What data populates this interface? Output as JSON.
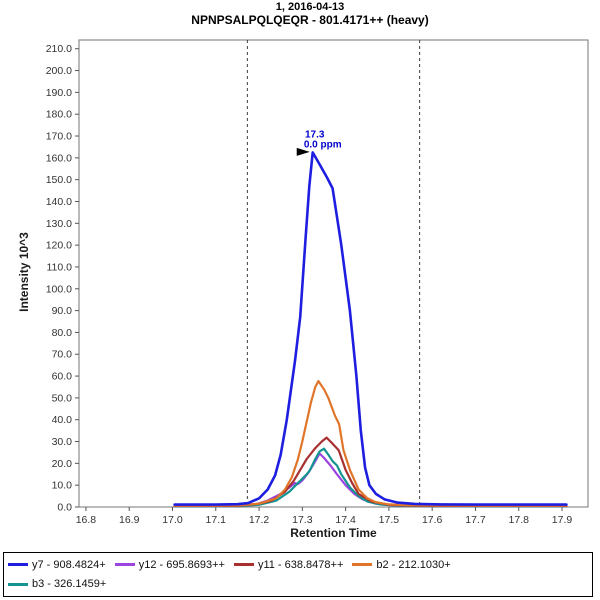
{
  "chart_data": {
    "type": "line",
    "title": "1, 2016-04-13",
    "subtitle": "NPNPSALPQLQEQR - 801.4171++ (heavy)",
    "xlabel": "Retention Time",
    "ylabel": "Intensity 10^3",
    "xlim": [
      16.784,
      17.96
    ],
    "ylim": [
      0,
      214
    ],
    "x_ticks": [
      16.8,
      16.9,
      17.0,
      17.1,
      17.2,
      17.3,
      17.4,
      17.5,
      17.6,
      17.7,
      17.8,
      17.9
    ],
    "y_ticks": [
      0,
      10,
      20,
      30,
      40,
      50,
      60,
      70,
      80,
      90,
      100,
      110,
      120,
      130,
      140,
      150,
      160,
      170,
      180,
      190,
      200,
      210
    ],
    "grid": false,
    "legend_position": "bottom",
    "peak_boundaries": [
      17.173,
      17.571
    ],
    "boundary_color": "#3c3c3c",
    "annotation": {
      "x": 17.324,
      "y": 162.5,
      "line1": "17.3",
      "line2": "0.0 ppm",
      "color": "#0000cc",
      "arrow_color": "#000000"
    },
    "series": [
      {
        "name": "y7",
        "label": "y7 - 908.4824+",
        "color": "#1e1ee0",
        "width": 2.6,
        "points": [
          [
            17.005,
            1.1
          ],
          [
            17.05,
            1.1
          ],
          [
            17.1,
            1.1
          ],
          [
            17.15,
            1.3
          ],
          [
            17.175,
            1.8
          ],
          [
            17.2,
            4
          ],
          [
            17.22,
            8
          ],
          [
            17.237,
            14.5
          ],
          [
            17.25,
            24
          ],
          [
            17.264,
            40
          ],
          [
            17.283,
            67
          ],
          [
            17.295,
            87
          ],
          [
            17.307,
            122
          ],
          [
            17.316,
            147
          ],
          [
            17.324,
            162.5
          ],
          [
            17.34,
            157
          ],
          [
            17.357,
            151
          ],
          [
            17.37,
            146
          ],
          [
            17.39,
            120
          ],
          [
            17.41,
            90
          ],
          [
            17.425,
            60
          ],
          [
            17.435,
            35
          ],
          [
            17.445,
            18
          ],
          [
            17.455,
            10
          ],
          [
            17.47,
            6
          ],
          [
            17.49,
            3.5
          ],
          [
            17.52,
            2
          ],
          [
            17.56,
            1.4
          ],
          [
            17.62,
            1.2
          ],
          [
            17.7,
            1.1
          ],
          [
            17.8,
            1.1
          ],
          [
            17.91,
            1.1
          ]
        ]
      },
      {
        "name": "y12",
        "label": "y12 - 695.8693++",
        "color": "#9b44e0",
        "width": 2.2,
        "points": [
          [
            17.005,
            0.4
          ],
          [
            17.1,
            0.4
          ],
          [
            17.15,
            0.4
          ],
          [
            17.19,
            1
          ],
          [
            17.22,
            3
          ],
          [
            17.25,
            6
          ],
          [
            17.27,
            9
          ],
          [
            17.283,
            11
          ],
          [
            17.29,
            10.5
          ],
          [
            17.3,
            12.2
          ],
          [
            17.315,
            16
          ],
          [
            17.33,
            21
          ],
          [
            17.34,
            24.5
          ],
          [
            17.35,
            22.5
          ],
          [
            17.365,
            19
          ],
          [
            17.38,
            15
          ],
          [
            17.4,
            10
          ],
          [
            17.42,
            6
          ],
          [
            17.44,
            3.5
          ],
          [
            17.47,
            1.5
          ],
          [
            17.51,
            0.7
          ],
          [
            17.6,
            0.4
          ],
          [
            17.7,
            0.4
          ],
          [
            17.91,
            0.4
          ]
        ]
      },
      {
        "name": "y11",
        "label": "y11 - 638.8478++",
        "color": "#a93030",
        "width": 2.2,
        "points": [
          [
            17.005,
            0.5
          ],
          [
            17.1,
            0.5
          ],
          [
            17.15,
            0.5
          ],
          [
            17.2,
            1.5
          ],
          [
            17.23,
            3
          ],
          [
            17.26,
            7
          ],
          [
            17.28,
            12
          ],
          [
            17.295,
            17
          ],
          [
            17.31,
            22
          ],
          [
            17.33,
            27
          ],
          [
            17.345,
            30
          ],
          [
            17.356,
            31.8
          ],
          [
            17.37,
            29
          ],
          [
            17.384,
            26
          ],
          [
            17.4,
            17
          ],
          [
            17.415,
            11
          ],
          [
            17.43,
            6
          ],
          [
            17.46,
            2.5
          ],
          [
            17.5,
            1
          ],
          [
            17.55,
            0.6
          ],
          [
            17.6,
            0.5
          ],
          [
            17.7,
            0.5
          ],
          [
            17.91,
            0.5
          ]
        ]
      },
      {
        "name": "b2",
        "label": "b2 - 212.1030+",
        "color": "#e0752a",
        "width": 2.2,
        "points": [
          [
            17.005,
            0.6
          ],
          [
            17.1,
            0.6
          ],
          [
            17.15,
            0.7
          ],
          [
            17.2,
            1.5
          ],
          [
            17.24,
            4
          ],
          [
            17.26,
            8
          ],
          [
            17.276,
            13.7
          ],
          [
            17.29,
            22
          ],
          [
            17.3,
            30
          ],
          [
            17.32,
            48
          ],
          [
            17.33,
            55
          ],
          [
            17.337,
            57.7
          ],
          [
            17.35,
            54
          ],
          [
            17.36,
            50
          ],
          [
            17.375,
            42
          ],
          [
            17.385,
            38
          ],
          [
            17.395,
            26
          ],
          [
            17.41,
            17
          ],
          [
            17.43,
            8
          ],
          [
            17.45,
            4
          ],
          [
            17.47,
            2.2
          ],
          [
            17.5,
            1.2
          ],
          [
            17.55,
            0.8
          ],
          [
            17.6,
            0.7
          ],
          [
            17.7,
            0.6
          ],
          [
            17.91,
            0.6
          ]
        ]
      },
      {
        "name": "b3",
        "label": "b3 - 326.1459+",
        "color": "#149490",
        "width": 2.2,
        "points": [
          [
            17.005,
            0.4
          ],
          [
            17.1,
            0.4
          ],
          [
            17.15,
            0.4
          ],
          [
            17.2,
            1
          ],
          [
            17.24,
            3
          ],
          [
            17.27,
            7
          ],
          [
            17.29,
            11
          ],
          [
            17.31,
            15
          ],
          [
            17.318,
            17
          ],
          [
            17.33,
            22
          ],
          [
            17.34,
            25.5
          ],
          [
            17.35,
            26.7
          ],
          [
            17.36,
            24
          ],
          [
            17.37,
            21
          ],
          [
            17.38,
            19
          ],
          [
            17.39,
            15
          ],
          [
            17.41,
            9
          ],
          [
            17.43,
            5
          ],
          [
            17.45,
            2.5
          ],
          [
            17.48,
            1.2
          ],
          [
            17.52,
            0.6
          ],
          [
            17.6,
            0.4
          ],
          [
            17.7,
            0.4
          ],
          [
            17.91,
            0.4
          ]
        ]
      }
    ],
    "draw_order": [
      1,
      4,
      2,
      3,
      0
    ],
    "legend_rows": [
      [
        0,
        1,
        2,
        3
      ],
      [
        4
      ]
    ]
  }
}
